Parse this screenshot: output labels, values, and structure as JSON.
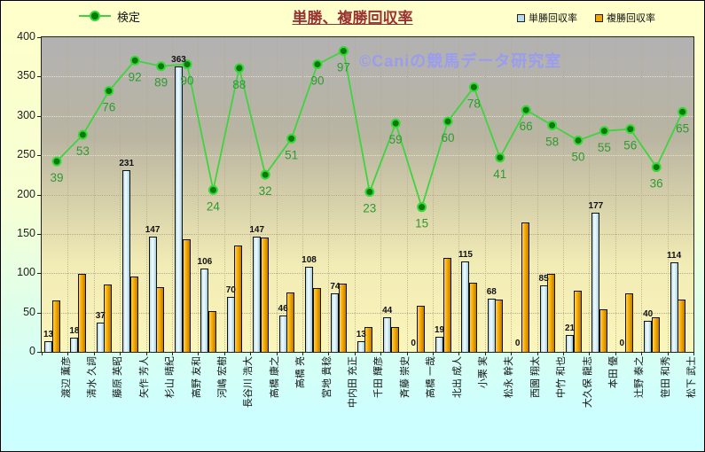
{
  "header": {
    "title": "単勝、複勝回収率",
    "legend_line_label": "検定",
    "legend_bar1_label": "単勝回収率",
    "legend_bar2_label": "複勝回収率"
  },
  "watermark": "©Caniの競馬データ研究室",
  "colors": {
    "line": "#3fd43f",
    "line_marker": "#0a7a0a",
    "line_label": "#2f9a2f",
    "bar_tansho": "#cfe9f4",
    "bar_fukusho": "#f0a500",
    "title": "#993333",
    "watermark": "#9a9cf0",
    "background_top": "#ffffc9",
    "background_bottom": "#ccffff",
    "plot_top": "#b2b2b2",
    "plot_bottom": "#fbf6ba"
  },
  "chart_data": {
    "type": "bar",
    "title": "単勝、複勝回収率",
    "categories": [
      "渡辺 薫彦",
      "清水 久詞",
      "藤原 英昭",
      "矢作 芳人",
      "杉山 晴紀",
      "高野 友和",
      "河嶋 宏樹",
      "長谷川 浩大",
      "高橋 康之",
      "高橋 亮",
      "宮地 貴稔",
      "中内田 充正",
      "千田 輝彦",
      "斉藤 崇史",
      "高橋 一哉",
      "北出 成人",
      "小栗 実",
      "松永 幹夫",
      "西園 翔太",
      "中竹 和也",
      "大久保 龍志",
      "本田 優",
      "辻野 泰之",
      "笹田 和秀",
      "松下 武士"
    ],
    "series": [
      {
        "name": "単勝回収率",
        "type": "bar",
        "color": "#cfe9f4",
        "labels_visible": true,
        "values": [
          13,
          18,
          37,
          231,
          147,
          363,
          106,
          70,
          147,
          46,
          108,
          74,
          13,
          44,
          0,
          19,
          115,
          68,
          0,
          85,
          21,
          177,
          0,
          40,
          114
        ]
      },
      {
        "name": "複勝回収率",
        "type": "bar",
        "color": "#f0a500",
        "labels_visible": false,
        "values": [
          65,
          99,
          86,
          96,
          82,
          143,
          52,
          135,
          145,
          76,
          81,
          87,
          31,
          32,
          59,
          120,
          88,
          66,
          165,
          99,
          78,
          54,
          74,
          44,
          66
        ]
      },
      {
        "name": "検定",
        "type": "line",
        "color": "#3fd43f",
        "labels_visible": true,
        "axis": "secondary",
        "values": [
          39,
          53,
          76,
          92,
          89,
          90,
          24,
          88,
          32,
          51,
          90,
          97,
          23,
          59,
          15,
          60,
          78,
          41,
          66,
          58,
          50,
          55,
          56,
          36,
          65
        ]
      }
    ],
    "xlabel": "",
    "ylabel": "",
    "ylim": [
      0,
      400
    ],
    "yticks": [
      0,
      50,
      100,
      150,
      200,
      250,
      300,
      350,
      400
    ],
    "grid": true,
    "legend_position": "top"
  }
}
